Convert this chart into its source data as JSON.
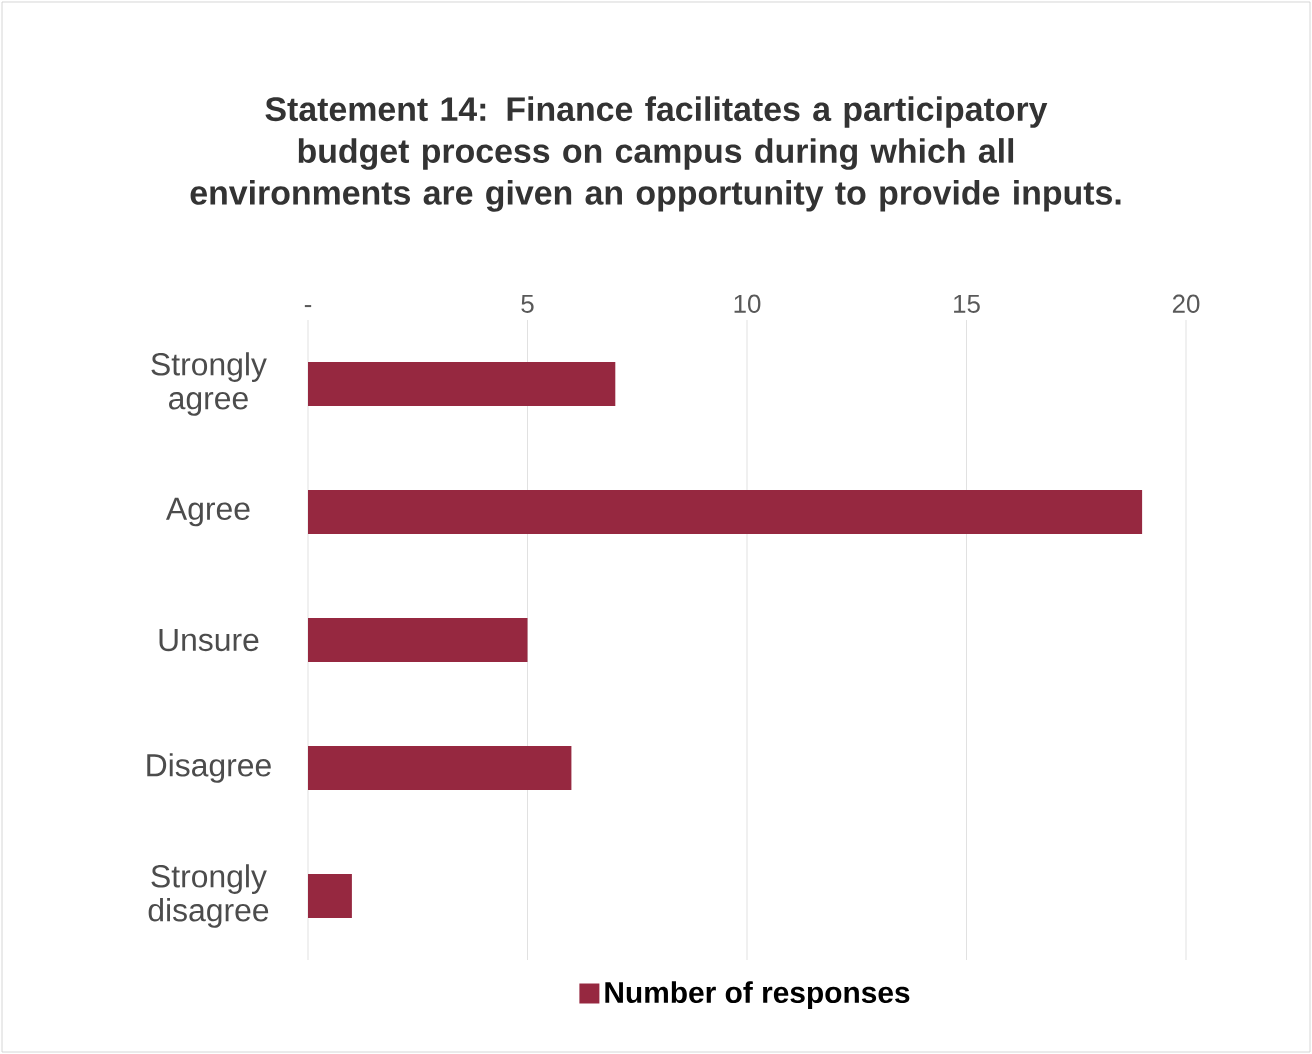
{
  "chart_data": {
    "type": "bar",
    "orientation": "horizontal",
    "title": "Statement 14: Finance facilitates a participatory budget process on campus during which all environments are given an opportunity to provide inputs.",
    "categories": [
      "Strongly agree",
      "Agree",
      "Unsure",
      "Disagree",
      "Strongly disagree"
    ],
    "series": [
      {
        "name": "Number of responses",
        "color": "#962840",
        "values": [
          7,
          19,
          5,
          6,
          1
        ]
      }
    ],
    "xlim": [
      0,
      20
    ],
    "xticks": [
      {
        "value": 0,
        "label": "-"
      },
      5,
      10,
      15,
      20
    ],
    "grid": "x",
    "legend": "bottom"
  }
}
